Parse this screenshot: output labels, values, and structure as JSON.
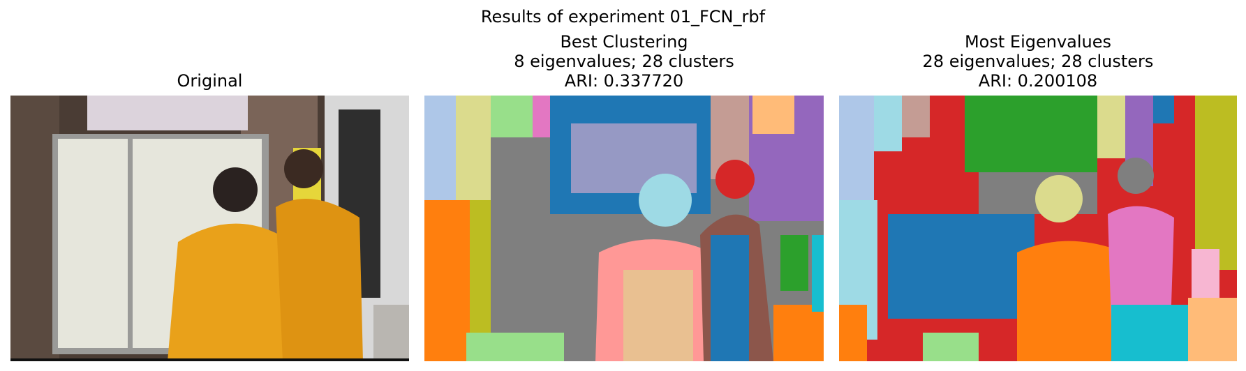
{
  "figure": {
    "suptitle": "Results of experiment 01_FCN_rbf"
  },
  "panels": [
    {
      "title_lines": [
        "Original"
      ]
    },
    {
      "title_lines": [
        "Best Clustering",
        "8 eigenvalues; 28 clusters",
        "ARI: 0.337720"
      ]
    },
    {
      "title_lines": [
        "Most Eigenvalues",
        "28 eigenvalues; 28 clusters",
        "ARI: 0.200108"
      ]
    }
  ],
  "colors": {
    "background": "#ffffff",
    "robe": "#e9a11a",
    "cluster_blue": "#1f77b4",
    "cluster_orange": "#ff7f0e",
    "cluster_green": "#2ca02c",
    "cluster_red": "#d62728",
    "cluster_purple": "#9467bd",
    "cluster_brown": "#8c564b",
    "cluster_pink": "#e377c2",
    "cluster_gray": "#7f7f7f",
    "cluster_olive": "#bcbd22",
    "cluster_cyan": "#17becf"
  }
}
